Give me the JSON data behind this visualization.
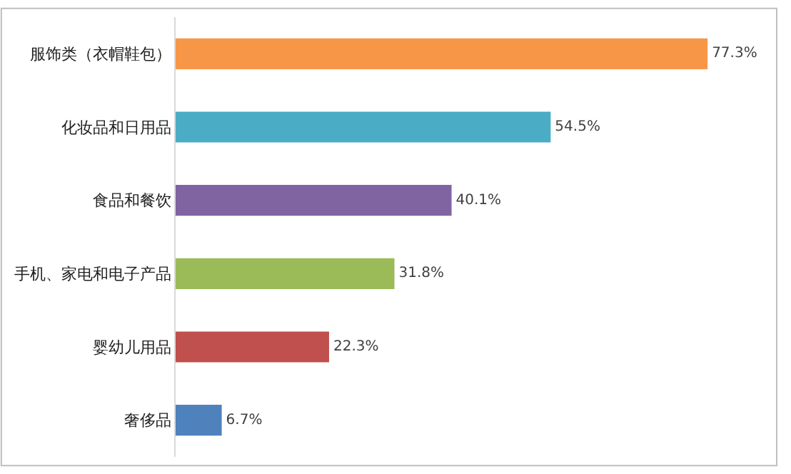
{
  "chart_data": {
    "type": "bar",
    "orientation": "horizontal",
    "categories": [
      "服饰类（衣帽鞋包）",
      "化妆品和日用品",
      "食品和餐饮",
      "手机、家电和电子产品",
      "婴幼儿用品",
      "奢侈品"
    ],
    "values": [
      77.3,
      54.5,
      40.1,
      31.8,
      22.3,
      6.7
    ],
    "value_labels": [
      "77.3%",
      "54.5%",
      "40.1%",
      "31.8%",
      "22.3%",
      "6.7%"
    ],
    "colors": [
      "#f79646",
      "#4bacc6",
      "#8064a2",
      "#9bbb59",
      "#c0504d",
      "#4f81bd"
    ]
  }
}
